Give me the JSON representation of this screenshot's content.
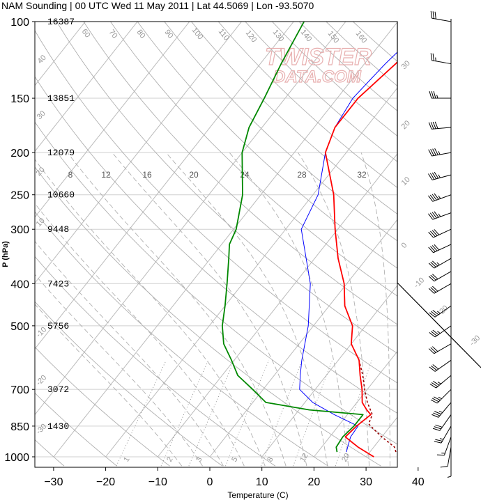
{
  "title": "NAM Sounding | 00 UTC Wed 11 May 2011 | Lat 44.5069 | Lon -93.5070",
  "watermark": {
    "line1": "TWISTER",
    "line2": "DATA.COM"
  },
  "colors": {
    "temperature": "#ff0000",
    "parcel": "#990000",
    "dewpoint": "#008800",
    "wetbulb": "#0000ff",
    "isotherm": "#bbbbbb",
    "dryadiabat": "#b0b0b0",
    "moistadiabat": "#b0b0b0",
    "mixingratio": "#888888"
  },
  "chart_data": {
    "type": "skew-t",
    "xlabel": "Temperature (C)",
    "ylabel": "P (hPa)",
    "x_ticks": [
      -30,
      -20,
      -10,
      0,
      10,
      20,
      30,
      40
    ],
    "y_ticks": [
      100,
      150,
      200,
      250,
      300,
      400,
      500,
      700,
      850,
      1000
    ],
    "ylim": [
      1000,
      100
    ],
    "height_labels": [
      {
        "p": 100,
        "label": "16387"
      },
      {
        "p": 150,
        "label": "13851"
      },
      {
        "p": 200,
        "label": "12079"
      },
      {
        "p": 250,
        "label": "10660"
      },
      {
        "p": 300,
        "label": "9448"
      },
      {
        "p": 400,
        "label": "7423"
      },
      {
        "p": 500,
        "label": "5756"
      },
      {
        "p": 700,
        "label": "3072"
      },
      {
        "p": 850,
        "label": "1430"
      }
    ],
    "isotherm_labels": [
      {
        "t": 60,
        "label": "60"
      },
      {
        "t": 70,
        "label": "70"
      },
      {
        "t": 80,
        "label": "80"
      },
      {
        "t": 90,
        "label": "90"
      },
      {
        "t": 100,
        "label": "100"
      },
      {
        "t": 110,
        "label": "110"
      },
      {
        "t": 120,
        "label": "120"
      },
      {
        "t": 130,
        "label": "130"
      },
      {
        "t": 140,
        "label": "140"
      },
      {
        "t": 150,
        "label": "150"
      },
      {
        "t": 160,
        "label": "160"
      }
    ],
    "dry_adiabat_labels": [
      {
        "theta": 40,
        "label": "40"
      },
      {
        "theta": 30,
        "label": "30"
      },
      {
        "theta": 20,
        "label": "20"
      },
      {
        "theta": 10,
        "label": "10"
      },
      {
        "theta": 0,
        "label": "0"
      },
      {
        "theta": -10,
        "label": "-10"
      },
      {
        "theta": -20,
        "label": "-20"
      },
      {
        "theta": -30,
        "label": "-30"
      }
    ],
    "mixing_ratio_labels": [
      "1",
      "2",
      "3",
      "5",
      "8",
      "12",
      "20"
    ],
    "moist_adiabat_labels": [
      "8",
      "12",
      "16",
      "20",
      "24",
      "28",
      "32"
    ],
    "series": [
      {
        "name": "temperature",
        "points": [
          [
            1000,
            31.5
          ],
          [
            950,
            27
          ],
          [
            900,
            23
          ],
          [
            850,
            23.5
          ],
          [
            800,
            24.5
          ],
          [
            780,
            23
          ],
          [
            750,
            21
          ],
          [
            700,
            19
          ],
          [
            650,
            16.5
          ],
          [
            600,
            14
          ],
          [
            550,
            10
          ],
          [
            500,
            7.5
          ],
          [
            450,
            3
          ],
          [
            400,
            -0.5
          ],
          [
            350,
            -5.5
          ],
          [
            300,
            -10.5
          ],
          [
            250,
            -16
          ],
          [
            200,
            -24
          ],
          [
            175,
            -26
          ],
          [
            150,
            -26
          ],
          [
            125,
            -24
          ],
          [
            100,
            -23
          ]
        ]
      },
      {
        "name": "parcel",
        "points": [
          [
            975,
            35
          ],
          [
            950,
            34
          ],
          [
            900,
            30
          ],
          [
            860,
            27
          ],
          [
            840,
            25.5
          ],
          [
            800,
            24.8
          ],
          [
            750,
            22
          ],
          [
            700,
            19.5
          ],
          [
            650,
            17
          ],
          [
            600,
            14
          ]
        ]
      },
      {
        "name": "dewpoint",
        "points": [
          [
            975,
            23.7
          ],
          [
            950,
            22.8
          ],
          [
            900,
            22.5
          ],
          [
            850,
            23
          ],
          [
            800,
            23
          ],
          [
            780,
            12
          ],
          [
            750,
            2.5
          ],
          [
            700,
            -2
          ],
          [
            650,
            -7
          ],
          [
            600,
            -10.5
          ],
          [
            550,
            -14.5
          ],
          [
            500,
            -17.5
          ],
          [
            450,
            -20
          ],
          [
            400,
            -23
          ],
          [
            350,
            -26.5
          ],
          [
            325,
            -28.5
          ],
          [
            300,
            -29.5
          ],
          [
            250,
            -33.5
          ],
          [
            200,
            -40
          ],
          [
            175,
            -42.5
          ],
          [
            150,
            -44
          ],
          [
            125,
            -46
          ],
          [
            100,
            -48
          ]
        ]
      },
      {
        "name": "wetbulb",
        "points": [
          [
            975,
            25.5
          ],
          [
            950,
            25
          ],
          [
            900,
            24
          ],
          [
            850,
            23.8
          ],
          [
            800,
            17.5
          ],
          [
            750,
            11.5
          ],
          [
            700,
            7
          ],
          [
            650,
            5
          ],
          [
            600,
            3
          ],
          [
            500,
            -1
          ],
          [
            400,
            -7
          ],
          [
            300,
            -17
          ],
          [
            250,
            -19
          ],
          [
            200,
            -24
          ],
          [
            175,
            -26
          ],
          [
            150,
            -27
          ],
          [
            125,
            -26
          ],
          [
            100,
            -24
          ]
        ]
      }
    ],
    "wind_barbs": [
      {
        "p": 100,
        "dir": 280,
        "kt": 30
      },
      {
        "p": 125,
        "dir": 280,
        "kt": 25
      },
      {
        "p": 150,
        "dir": 270,
        "kt": 35
      },
      {
        "p": 175,
        "dir": 265,
        "kt": 40
      },
      {
        "p": 200,
        "dir": 260,
        "kt": 45
      },
      {
        "p": 225,
        "dir": 255,
        "kt": 45
      },
      {
        "p": 250,
        "dir": 250,
        "kt": 45
      },
      {
        "p": 275,
        "dir": 250,
        "kt": 45
      },
      {
        "p": 300,
        "dir": 245,
        "kt": 40
      },
      {
        "p": 325,
        "dir": 245,
        "kt": 40
      },
      {
        "p": 350,
        "dir": 240,
        "kt": 35
      },
      {
        "p": 375,
        "dir": 240,
        "kt": 30
      },
      {
        "p": 400,
        "dir": 240,
        "kt": 30
      },
      {
        "p": 450,
        "dir": 235,
        "kt": 35
      },
      {
        "p": 500,
        "dir": 235,
        "kt": 35
      },
      {
        "p": 550,
        "dir": 240,
        "kt": 30
      },
      {
        "p": 600,
        "dir": 235,
        "kt": 30
      },
      {
        "p": 650,
        "dir": 230,
        "kt": 35
      },
      {
        "p": 700,
        "dir": 225,
        "kt": 35
      },
      {
        "p": 750,
        "dir": 220,
        "kt": 35
      },
      {
        "p": 800,
        "dir": 215,
        "kt": 30
      },
      {
        "p": 850,
        "dir": 210,
        "kt": 25
      },
      {
        "p": 900,
        "dir": 200,
        "kt": 15
      },
      {
        "p": 950,
        "dir": 190,
        "kt": 10
      },
      {
        "p": 1000,
        "dir": 180,
        "kt": 5
      }
    ]
  }
}
